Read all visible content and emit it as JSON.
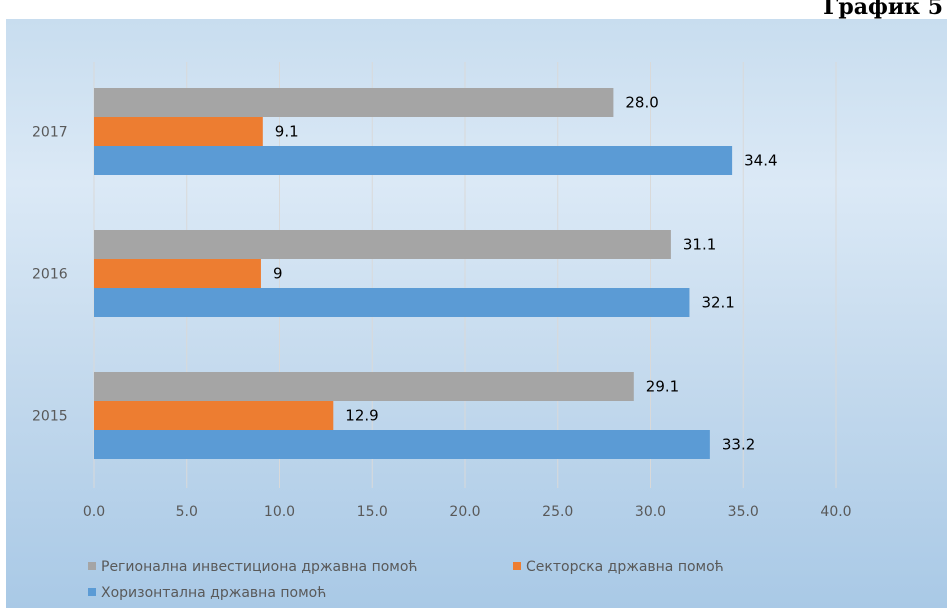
{
  "page": {
    "title": "График 5"
  },
  "chart_data": {
    "type": "bar",
    "orientation": "horizontal",
    "categories": [
      "2017",
      "2016",
      "2015"
    ],
    "series": [
      {
        "name": "Регионална инвестициона државна помоћ",
        "color": "#a5a5a5",
        "values": [
          28.0,
          31.1,
          29.1
        ],
        "labels": [
          "28.0",
          "31.1",
          "29.1"
        ]
      },
      {
        "name": "Секторска државна помоћ",
        "color": "#ed7d31",
        "values": [
          9.1,
          9,
          12.9
        ],
        "labels": [
          "9.1",
          "9",
          "12.9"
        ]
      },
      {
        "name": "Хоризонтална државна помоћ",
        "color": "#5b9bd5",
        "values": [
          34.4,
          32.1,
          33.2
        ],
        "labels": [
          "34.4",
          "32.1",
          "33.2"
        ]
      }
    ],
    "xlim": [
      0,
      40
    ],
    "xticks": [
      "0.0",
      "5.0",
      "10.0",
      "15.0",
      "20.0",
      "25.0",
      "30.0",
      "35.0",
      "40.0"
    ],
    "grid": true,
    "legend": "bottom-left"
  }
}
